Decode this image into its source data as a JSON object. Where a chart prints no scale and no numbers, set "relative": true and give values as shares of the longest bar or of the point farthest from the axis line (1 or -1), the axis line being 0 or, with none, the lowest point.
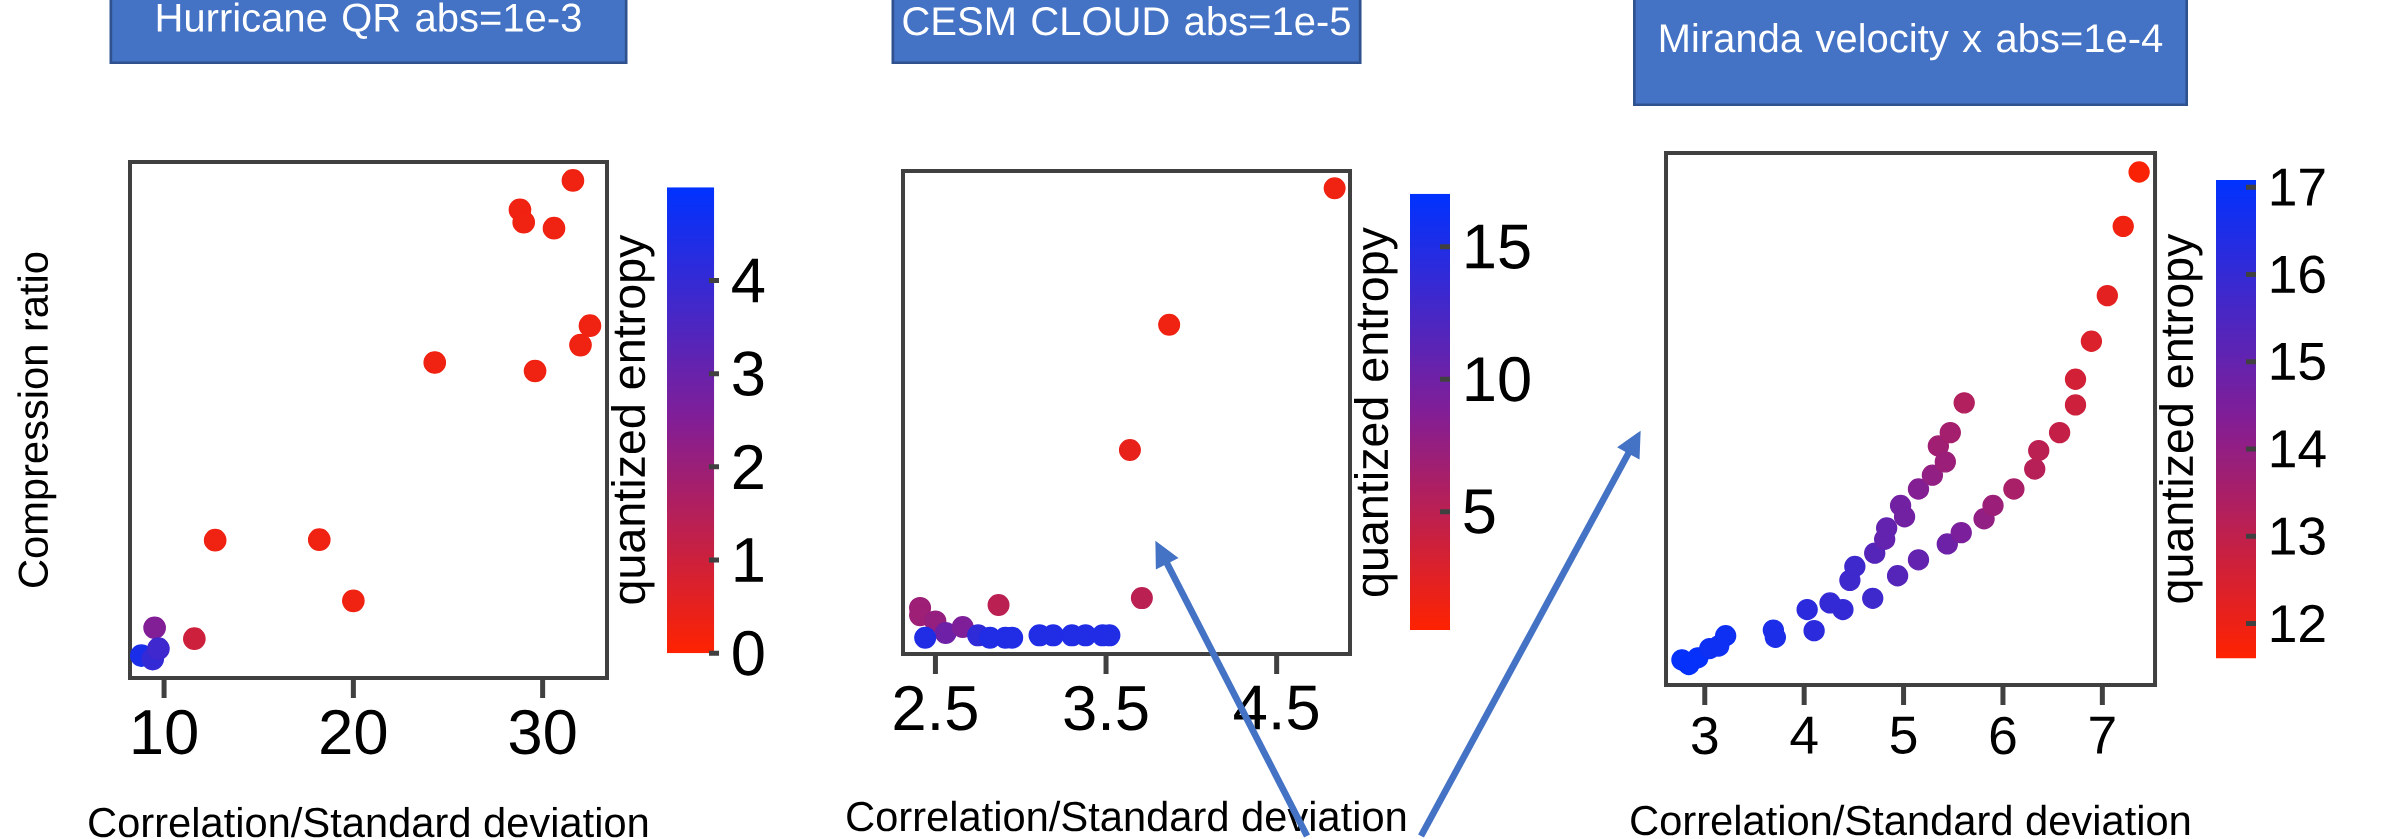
{
  "chart_data": [
    {
      "type": "scatter",
      "title": "Hurricane QR abs=1e-3",
      "xlabel": "Correlation/Standard deviation",
      "ylabel": "Compression ratio",
      "clabel": "quantized entropy",
      "relative": true,
      "marker": "circle",
      "tick_labels": "x",
      "x": [
        9.5,
        8.8,
        9.4,
        9.7,
        11.6,
        12.7,
        18.2,
        20.0,
        24.3,
        28.8,
        29.0,
        30.6,
        31.6,
        32.5,
        32.0,
        29.6
      ],
      "values": [
        0.101,
        0.045,
        0.038,
        0.059,
        0.079,
        0.277,
        0.278,
        0.155,
        0.634,
        0.941,
        0.916,
        0.904,
        1,
        0.708,
        0.669,
        0.617
      ],
      "cvalues": [
        2.5,
        4.5,
        4,
        3.8,
        1,
        0.3,
        0.3,
        0.3,
        0.3,
        0.3,
        0.3,
        0.3,
        0.3,
        0.3,
        0.3,
        0.3
      ],
      "xlim": [
        8.2,
        33.4
      ],
      "xticks": [
        10,
        20,
        30
      ],
      "clim": [
        0,
        5
      ],
      "cticks": [
        0,
        1,
        2,
        3,
        4
      ]
    },
    {
      "type": "scatter",
      "title": "CESM CLOUD abs=1e-5",
      "xlabel": "Correlation/Standard deviation",
      "clabel": "quantized entropy",
      "relative": true,
      "marker": "circle",
      "tick_labels": "x",
      "x": [
        4.84,
        3.87,
        3.64,
        3.71,
        2.87,
        2.41,
        2.41,
        2.5,
        2.56,
        2.66,
        2.44,
        2.75,
        2.82,
        2.91,
        2.95,
        3.11,
        3.19,
        3.3,
        3.38,
        3.48,
        3.52
      ],
      "values": [
        1,
        0.707,
        0.438,
        0.12,
        0.105,
        0.099,
        0.083,
        0.07,
        0.045,
        0.058,
        0.035,
        0.04,
        0.035,
        0.035,
        0.035,
        0.04,
        0.04,
        0.04,
        0.04,
        0.04,
        0.04
      ],
      "cvalues": [
        1.5,
        1.5,
        2,
        5,
        5,
        7,
        7,
        7.5,
        10,
        9,
        15,
        14,
        15,
        15,
        15,
        15,
        15,
        15,
        15,
        15,
        15
      ],
      "xlim": [
        2.31,
        4.93
      ],
      "xticks": [
        2.5,
        3.5,
        4.5
      ],
      "clim": [
        0.5,
        17
      ],
      "cticks": [
        5,
        10,
        15
      ]
    },
    {
      "type": "scatter",
      "title": "Miranda velocity x abs=1e-4",
      "xlabel": "Correlation/Standard deviation",
      "clabel": "quantized entropy",
      "relative": true,
      "marker": "circle",
      "tick_labels": "x",
      "x": [
        2.77,
        2.84,
        2.93,
        3.05,
        3.14,
        3.21,
        3.69,
        3.71,
        4.03,
        4.1,
        4.26,
        4.39,
        4.46,
        4.51,
        4.69,
        4.71,
        4.81,
        4.83,
        4.94,
        4.97,
        5.01,
        5.15,
        5.15,
        5.29,
        5.35,
        5.42,
        5.44,
        5.47,
        5.58,
        5.61,
        5.81,
        5.9,
        6.11,
        6.32,
        6.36,
        6.57,
        6.73,
        6.73,
        6.89,
        7.05,
        7.21,
        7.37
      ],
      "values": [
        0.049,
        0.04,
        0.053,
        0.071,
        0.076,
        0.096,
        0.107,
        0.093,
        0.147,
        0.106,
        0.16,
        0.147,
        0.204,
        0.231,
        0.169,
        0.257,
        0.284,
        0.306,
        0.213,
        0.35,
        0.328,
        0.244,
        0.382,
        0.409,
        0.466,
        0.435,
        0.275,
        0.492,
        0.297,
        0.55,
        0.324,
        0.35,
        0.382,
        0.421,
        0.457,
        0.492,
        0.546,
        0.596,
        0.67,
        0.759,
        0.894,
        1
      ],
      "cvalues": [
        17,
        17,
        17,
        16.8,
        16.8,
        16.8,
        16.5,
        16.5,
        16.2,
        16.2,
        16,
        16,
        15.8,
        15.8,
        15.8,
        15.3,
        15,
        15,
        15.3,
        14.7,
        14.7,
        15,
        14.3,
        14,
        13.7,
        13.8,
        14.8,
        13.6,
        14.5,
        13.3,
        14,
        13.8,
        13.5,
        13.2,
        13.1,
        12.9,
        12.7,
        12.6,
        12.4,
        12.2,
        11.9,
        11.7
      ],
      "xlim": [
        2.61,
        7.53
      ],
      "xticks": [
        3,
        4,
        5,
        6,
        7
      ],
      "clim": [
        11.6,
        17.1
      ],
      "cticks": [
        12,
        13,
        14,
        15,
        16,
        17
      ]
    }
  ]
}
